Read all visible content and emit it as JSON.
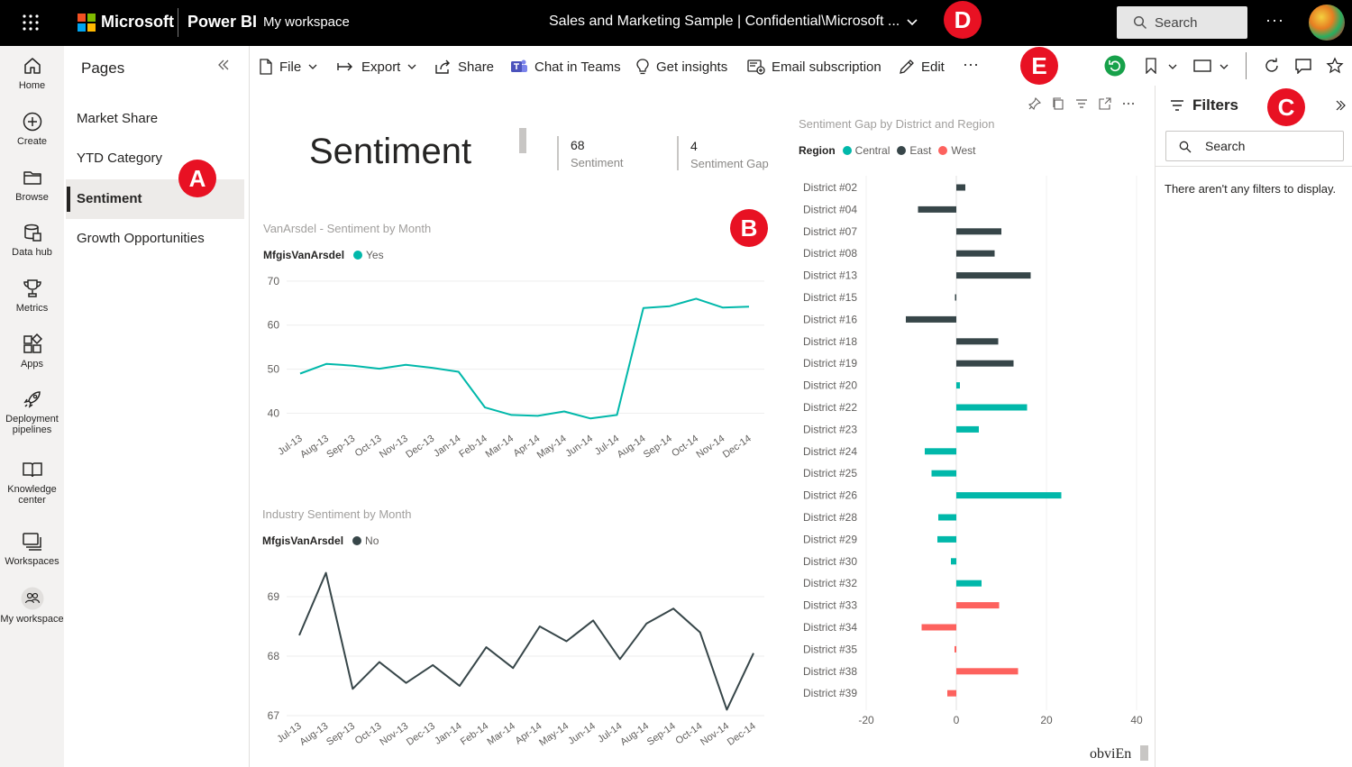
{
  "topbar": {
    "brand": "Microsoft",
    "product": "Power BI",
    "workspace": "My workspace",
    "report_title": "Sales and Marketing Sample  |  Confidential\\Microsoft ...",
    "search_placeholder": "Search",
    "more": "···"
  },
  "markers": {
    "a": "A",
    "b": "B",
    "c": "C",
    "d": "D",
    "e": "E"
  },
  "leftnav": [
    {
      "label": "Home",
      "icon": "home-icon"
    },
    {
      "label": "Create",
      "icon": "plus-circle-icon"
    },
    {
      "label": "Browse",
      "icon": "folder-icon"
    },
    {
      "label": "Data hub",
      "icon": "database-icon"
    },
    {
      "label": "Metrics",
      "icon": "trophy-icon"
    },
    {
      "label": "Apps",
      "icon": "apps-icon"
    },
    {
      "label": "Deployment pipelines",
      "icon": "rocket-icon"
    },
    {
      "label": "Knowledge center",
      "icon": "book-icon"
    },
    {
      "label": "Workspaces",
      "icon": "workspaces-icon"
    },
    {
      "label": "My workspace",
      "icon": "people-icon"
    }
  ],
  "pages": {
    "title": "Pages",
    "items": [
      "Market Share",
      "YTD Category",
      "Sentiment",
      "Growth Opportunities"
    ],
    "active": "Sentiment"
  },
  "toolbar": {
    "file": "File",
    "export": "Export",
    "share": "Share",
    "chat": "Chat in Teams",
    "insights": "Get insights",
    "email": "Email subscription",
    "edit": "Edit",
    "more": "···"
  },
  "report": {
    "title": "Sentiment",
    "kpi1": {
      "value": "68",
      "label": "Sentiment"
    },
    "kpi2": {
      "value": "4",
      "label": "Sentiment Gap"
    },
    "watermark": "obviEn"
  },
  "colors": {
    "teal": "#01b8aa",
    "dark": "#374649",
    "red": "#fd625e",
    "accent": "#e81123"
  },
  "chart_data": [
    {
      "type": "line",
      "title": "VanArsdel - Sentiment by Month",
      "legend_title": "MfgisVanArsdel",
      "x": [
        "Jul-13",
        "Aug-13",
        "Sep-13",
        "Oct-13",
        "Nov-13",
        "Dec-13",
        "Jan-14",
        "Feb-14",
        "Mar-14",
        "Apr-14",
        "May-14",
        "Jun-14",
        "Jul-14",
        "Aug-14",
        "Sep-14",
        "Oct-14",
        "Nov-14",
        "Dec-14"
      ],
      "series": [
        {
          "name": "Yes",
          "values": [
            49,
            51.2,
            50.8,
            50.1,
            51,
            50.3,
            49.4,
            41.3,
            39.6,
            39.4,
            40.4,
            38.8,
            39.6,
            63.9,
            64.3,
            66,
            64,
            64.2
          ]
        }
      ],
      "yticks": [
        40,
        50,
        60,
        70
      ],
      "ylim": [
        36,
        71
      ]
    },
    {
      "type": "line",
      "title": "Industry Sentiment by Month",
      "legend_title": "MfgisVanArsdel",
      "x": [
        "Jul-13",
        "Aug-13",
        "Sep-13",
        "Oct-13",
        "Nov-13",
        "Dec-13",
        "Jan-14",
        "Feb-14",
        "Mar-14",
        "Apr-14",
        "May-14",
        "Jun-14",
        "Jul-14",
        "Aug-14",
        "Sep-14",
        "Oct-14",
        "Nov-14",
        "Dec-14"
      ],
      "series": [
        {
          "name": "No",
          "values": [
            68.35,
            69.4,
            67.45,
            67.9,
            67.55,
            67.85,
            67.5,
            68.15,
            67.8,
            68.5,
            68.25,
            68.6,
            67.95,
            68.55,
            68.8,
            68.4,
            67.1,
            68.05
          ]
        }
      ],
      "yticks": [
        67,
        68,
        69
      ],
      "ylim": [
        67,
        69.5
      ]
    },
    {
      "type": "bar",
      "orientation": "horizontal",
      "title": "Sentiment Gap by District and Region",
      "legend_title": "Region",
      "legend": [
        {
          "name": "Central",
          "color": "#01b8aa"
        },
        {
          "name": "East",
          "color": "#374649"
        },
        {
          "name": "West",
          "color": "#fd625e"
        }
      ],
      "categories": [
        "District #02",
        "District #04",
        "District #07",
        "District #08",
        "District #13",
        "District #15",
        "District #16",
        "District #18",
        "District #19",
        "District #20",
        "District #22",
        "District #23",
        "District #24",
        "District #25",
        "District #26",
        "District #28",
        "District #29",
        "District #30",
        "District #32",
        "District #33",
        "District #34",
        "District #35",
        "District #38",
        "District #39"
      ],
      "values": [
        2,
        -8.5,
        10,
        8.5,
        16.5,
        -0.3,
        -11.2,
        9.3,
        12.7,
        0.8,
        15.7,
        5,
        -7,
        -5.5,
        23.3,
        -4,
        -4.2,
        -1.2,
        5.6,
        9.5,
        -7.7,
        -0.4,
        13.7,
        -2
      ],
      "regions": [
        "East",
        "East",
        "East",
        "East",
        "East",
        "East",
        "East",
        "East",
        "East",
        "Central",
        "Central",
        "Central",
        "Central",
        "Central",
        "Central",
        "Central",
        "Central",
        "Central",
        "Central",
        "West",
        "West",
        "West",
        "West",
        "West"
      ],
      "xticks": [
        -20,
        0,
        20,
        40
      ],
      "xlim": [
        -20,
        40
      ]
    }
  ],
  "filters": {
    "title": "Filters",
    "search": "Search",
    "empty": "There aren't any filters to display."
  }
}
